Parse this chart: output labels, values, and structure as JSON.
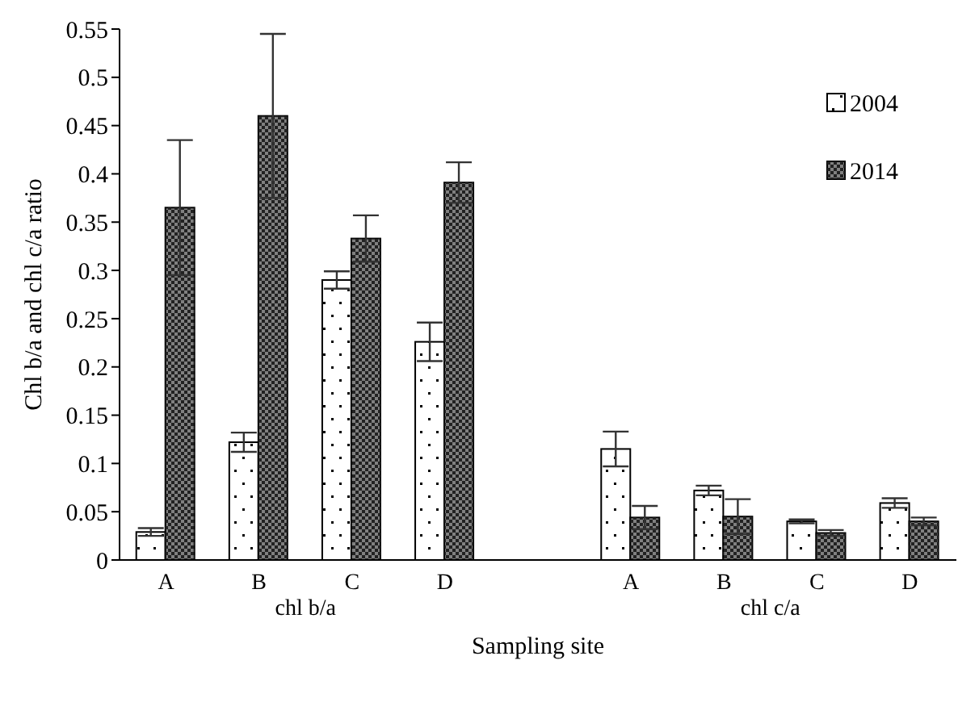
{
  "chart_data": {
    "type": "bar",
    "xlabel": "Sampling site",
    "ylabel": "Chl b/a and chl c/a ratio",
    "categories": [
      "A",
      "B",
      "C",
      "D",
      null,
      "A",
      "B",
      "C",
      "D"
    ],
    "series": [
      {
        "name": "2004",
        "color": "#ffffff",
        "values": [
          0.029,
          0.122,
          0.29,
          0.226,
          null,
          0.115,
          0.072,
          0.04,
          0.059
        ],
        "errors": [
          0.004,
          0.01,
          0.009,
          0.02,
          null,
          0.018,
          0.005,
          0.002,
          0.005
        ]
      },
      {
        "name": "2014",
        "color": "#808080",
        "values": [
          0.365,
          0.46,
          0.333,
          0.391,
          null,
          0.044,
          0.045,
          0.028,
          0.04
        ],
        "errors": [
          0.07,
          0.085,
          0.024,
          0.021,
          null,
          0.012,
          0.018,
          0.003,
          0.004
        ]
      }
    ],
    "annotations": [
      "chl b/a",
      "chl c/a"
    ],
    "ylim": [
      0,
      0.55
    ],
    "yticks": [
      0,
      0.05,
      0.1,
      0.15,
      0.2,
      0.25,
      0.3,
      0.35,
      0.4,
      0.45,
      0.5,
      0.55
    ],
    "grid": false,
    "legend": "top right"
  }
}
